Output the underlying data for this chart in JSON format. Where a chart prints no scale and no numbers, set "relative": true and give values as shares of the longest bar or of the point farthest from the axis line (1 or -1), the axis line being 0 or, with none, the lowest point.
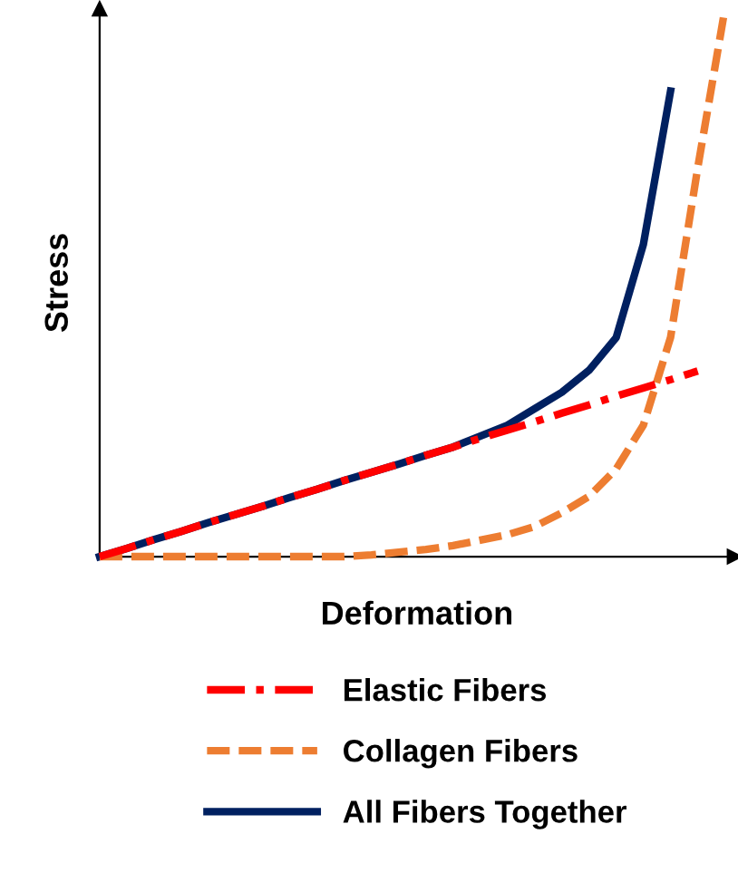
{
  "chart_data": {
    "type": "line",
    "relative": true,
    "xlabel": "Deformation",
    "ylabel": "Stress",
    "legend": "bottom",
    "categories": [
      null,
      null,
      null,
      null,
      null,
      null,
      null,
      null,
      null,
      null,
      null,
      null,
      null,
      null,
      null,
      null,
      null,
      null,
      null,
      null,
      null,
      null,
      null,
      null
    ],
    "series": [
      {
        "name": "Elastic Fibers",
        "color": "#ff0000",
        "line_style": "dashdot",
        "values": [
          0,
          0.015,
          0.031,
          0.046,
          0.062,
          0.077,
          0.092,
          0.108,
          0.123,
          0.139,
          0.154,
          0.169,
          0.185,
          0.2,
          0.216,
          0.231,
          0.246,
          0.262,
          0.277,
          0.293,
          0.308,
          0.323,
          0.339,
          null
        ]
      },
      {
        "name": "Collagen Fibers",
        "color": "#ed7d31",
        "line_style": "dashed",
        "values": [
          0,
          0,
          0,
          0,
          0,
          0,
          0,
          0,
          0,
          0,
          0.003,
          0.008,
          0.013,
          0.02,
          0.03,
          0.04,
          0.055,
          0.08,
          0.11,
          0.16,
          0.24,
          0.4,
          0.71,
          1.0
        ]
      },
      {
        "name": "All Fibers Together",
        "color": "#002060",
        "line_style": "solid",
        "values": [
          0,
          0.015,
          0.031,
          0.046,
          0.062,
          0.077,
          0.092,
          0.108,
          0.123,
          0.139,
          0.154,
          0.169,
          0.185,
          0.2,
          0.22,
          0.24,
          0.27,
          0.3,
          0.34,
          0.4,
          0.57,
          0.85,
          null,
          null
        ]
      }
    ]
  }
}
